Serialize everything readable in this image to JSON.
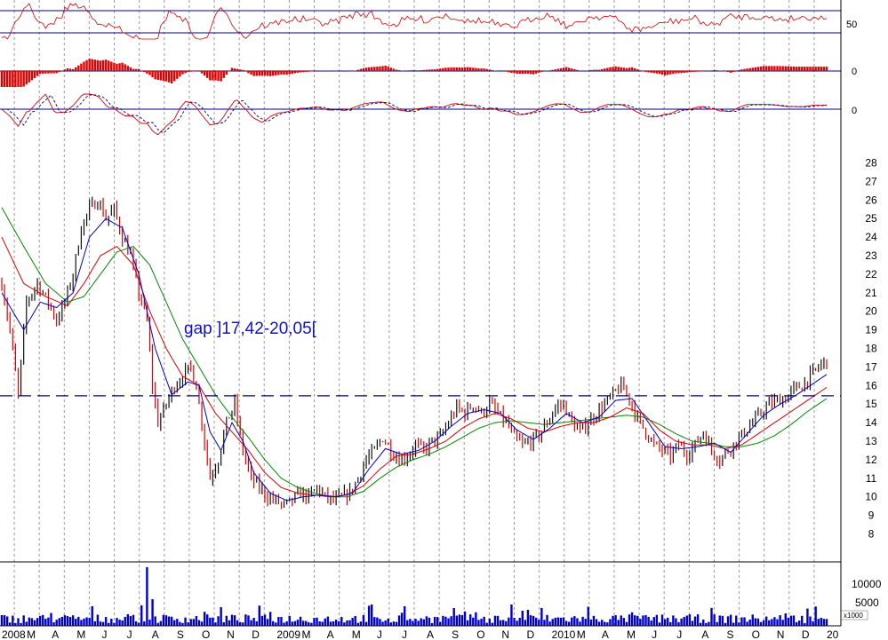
{
  "colors": {
    "price_up": "#101010",
    "price_down": "#e00000",
    "ma_short": "#0000cc",
    "ma_mid": "#dd0000",
    "ma_long": "#008800",
    "volume": "#0000cc",
    "grid": "#9a9a9a",
    "reference_line": "#000080",
    "indicator": "#dd0000",
    "histogram": "#e00000",
    "signal": "#000080"
  },
  "chart_data": [
    {
      "type": "line",
      "panel": "oscillator",
      "yticks": [
        "50"
      ],
      "reference_levels": [
        70,
        30
      ],
      "note": "oscillator band with horizontal reference lines"
    },
    {
      "type": "bar",
      "panel": "histogram",
      "yticks": [
        "0"
      ],
      "note": "red histogram around zero"
    },
    {
      "type": "line",
      "panel": "momentum",
      "yticks": [
        "0"
      ],
      "note": "red and dashed blue lines around zero"
    },
    {
      "type": "line",
      "panel": "price",
      "ylim": [
        7.5,
        28.6
      ],
      "yticks": [
        "8",
        "9",
        "10",
        "11",
        "12",
        "13",
        "14",
        "15",
        "16",
        "17",
        "18",
        "19",
        "20",
        "21",
        "22",
        "23",
        "24",
        "25",
        "26",
        "27",
        "28"
      ],
      "xticks": [
        "2008",
        "M",
        "A",
        "M",
        "J",
        "J",
        "A",
        "S",
        "O",
        "N",
        "D",
        "2009",
        "M",
        "A",
        "M",
        "J",
        "J",
        "A",
        "S",
        "O",
        "N",
        "D",
        "2010",
        "M",
        "A",
        "M",
        "J",
        "J",
        "A",
        "S",
        "O",
        "N",
        "D",
        "20"
      ],
      "support_level": 15.45,
      "annotation": "gap ]17,42-20,05[",
      "series": [
        {
          "kind": "close",
          "points": [
            [
              0,
              21.5
            ],
            [
              3,
              19.0
            ],
            [
              6,
              15.5
            ],
            [
              9,
              20.5
            ],
            [
              13,
              21.5
            ],
            [
              17,
              20.5
            ],
            [
              20,
              19.5
            ],
            [
              23,
              20.5
            ],
            [
              26,
              22.0
            ],
            [
              29,
              24.5
            ],
            [
              32,
              25.5
            ],
            [
              35,
              26.0
            ],
            [
              38,
              25.0
            ],
            [
              41,
              25.5
            ],
            [
              44,
              24.0
            ],
            [
              47,
              23.0
            ],
            [
              50,
              21.0
            ],
            [
              53,
              19.5
            ],
            [
              55,
              16.0
            ],
            [
              57,
              14.0
            ],
            [
              60,
              15.0
            ],
            [
              63,
              16.0
            ],
            [
              66,
              16.5
            ],
            [
              69,
              17.0
            ],
            [
              71,
              16.0
            ],
            [
              73,
              14.0
            ],
            [
              76,
              11.0
            ],
            [
              79,
              12.0
            ],
            [
              82,
              14.0
            ],
            [
              85,
              15.0
            ],
            [
              88,
              12.5
            ],
            [
              91,
              11.0
            ],
            [
              94,
              10.5
            ],
            [
              97,
              10.0
            ],
            [
              100,
              9.8
            ],
            [
              103,
              9.5
            ],
            [
              106,
              9.8
            ],
            [
              109,
              10.2
            ],
            [
              112,
              10.0
            ],
            [
              115,
              10.5
            ],
            [
              118,
              10.0
            ],
            [
              121,
              9.8
            ],
            [
              124,
              10.0
            ],
            [
              127,
              10.2
            ],
            [
              130,
              11.0
            ],
            [
              133,
              12.0
            ],
            [
              136,
              12.5
            ],
            [
              139,
              13.2
            ],
            [
              142,
              12.5
            ],
            [
              145,
              12.0
            ],
            [
              148,
              12.2
            ],
            [
              151,
              12.8
            ],
            [
              154,
              12.5
            ],
            [
              157,
              13.0
            ],
            [
              160,
              13.2
            ],
            [
              163,
              14.0
            ],
            [
              166,
              14.8
            ],
            [
              169,
              14.5
            ],
            [
              172,
              15.0
            ],
            [
              175,
              14.5
            ],
            [
              178,
              15.0
            ],
            [
              181,
              14.5
            ],
            [
              184,
              14.0
            ],
            [
              187,
              13.2
            ],
            [
              190,
              12.8
            ],
            [
              193,
              13.0
            ],
            [
              196,
              13.3
            ],
            [
              199,
              14.0
            ],
            [
              202,
              14.8
            ],
            [
              205,
              15.0
            ],
            [
              208,
              14.0
            ],
            [
              211,
              13.5
            ],
            [
              214,
              14.0
            ],
            [
              217,
              14.5
            ],
            [
              220,
              15.0
            ],
            [
              223,
              15.5
            ],
            [
              226,
              16.0
            ],
            [
              229,
              15.3
            ],
            [
              232,
              14.2
            ],
            [
              235,
              13.5
            ],
            [
              238,
              12.8
            ],
            [
              241,
              12.5
            ],
            [
              244,
              12.2
            ],
            [
              247,
              12.8
            ],
            [
              250,
              12.3
            ],
            [
              253,
              12.8
            ],
            [
              256,
              13.5
            ],
            [
              259,
              12.5
            ],
            [
              262,
              12.0
            ],
            [
              265,
              12.5
            ],
            [
              268,
              13.0
            ],
            [
              271,
              13.5
            ],
            [
              274,
              14.0
            ],
            [
              277,
              14.5
            ],
            [
              280,
              15.0
            ],
            [
              283,
              15.2
            ],
            [
              286,
              15.3
            ],
            [
              289,
              15.8
            ],
            [
              292,
              16.0
            ],
            [
              295,
              16.5
            ],
            [
              298,
              17.0
            ],
            [
              301,
              17.4
            ]
          ]
        },
        {
          "kind": "ma_short",
          "points": [
            [
              0,
              21.0
            ],
            [
              8,
              19.0
            ],
            [
              14,
              20.5
            ],
            [
              20,
              20.2
            ],
            [
              26,
              21.0
            ],
            [
              32,
              24.0
            ],
            [
              38,
              25.0
            ],
            [
              44,
              24.5
            ],
            [
              50,
              22.0
            ],
            [
              56,
              18.0
            ],
            [
              62,
              15.5
            ],
            [
              68,
              16.2
            ],
            [
              72,
              16.0
            ],
            [
              76,
              13.5
            ],
            [
              80,
              12.5
            ],
            [
              84,
              14.0
            ],
            [
              88,
              13.0
            ],
            [
              92,
              11.3
            ],
            [
              98,
              10.2
            ],
            [
              104,
              9.8
            ],
            [
              110,
              10.0
            ],
            [
              116,
              10.1
            ],
            [
              122,
              10.0
            ],
            [
              128,
              10.2
            ],
            [
              134,
              11.5
            ],
            [
              140,
              12.6
            ],
            [
              146,
              12.3
            ],
            [
              152,
              12.5
            ],
            [
              158,
              13.0
            ],
            [
              164,
              13.8
            ],
            [
              170,
              14.5
            ],
            [
              176,
              14.7
            ],
            [
              182,
              14.5
            ],
            [
              188,
              13.6
            ],
            [
              194,
              13.1
            ],
            [
              200,
              13.7
            ],
            [
              206,
              14.5
            ],
            [
              212,
              14.0
            ],
            [
              218,
              14.3
            ],
            [
              224,
              15.2
            ],
            [
              230,
              15.3
            ],
            [
              236,
              14.0
            ],
            [
              242,
              12.7
            ],
            [
              248,
              12.6
            ],
            [
              254,
              12.7
            ],
            [
              260,
              12.9
            ],
            [
              266,
              12.4
            ],
            [
              272,
              13.4
            ],
            [
              278,
              14.4
            ],
            [
              284,
              15.0
            ],
            [
              290,
              15.5
            ],
            [
              296,
              16.1
            ],
            [
              301,
              16.6
            ]
          ]
        },
        {
          "kind": "ma_mid",
          "points": [
            [
              0,
              24.0
            ],
            [
              8,
              21.5
            ],
            [
              16,
              20.8
            ],
            [
              24,
              20.3
            ],
            [
              30,
              21.5
            ],
            [
              36,
              23.0
            ],
            [
              42,
              23.5
            ],
            [
              48,
              22.5
            ],
            [
              54,
              20.0
            ],
            [
              60,
              18.0
            ],
            [
              66,
              16.5
            ],
            [
              72,
              16.0
            ],
            [
              78,
              14.5
            ],
            [
              84,
              13.5
            ],
            [
              90,
              12.5
            ],
            [
              96,
              11.3
            ],
            [
              102,
              10.5
            ],
            [
              108,
              10.2
            ],
            [
              114,
              10.1
            ],
            [
              120,
              10.0
            ],
            [
              126,
              10.1
            ],
            [
              132,
              10.6
            ],
            [
              138,
              11.5
            ],
            [
              144,
              12.2
            ],
            [
              150,
              12.3
            ],
            [
              156,
              12.6
            ],
            [
              162,
              13.0
            ],
            [
              168,
              13.7
            ],
            [
              174,
              14.2
            ],
            [
              180,
              14.5
            ],
            [
              186,
              14.2
            ],
            [
              192,
              13.7
            ],
            [
              198,
              13.5
            ],
            [
              204,
              13.8
            ],
            [
              210,
              14.0
            ],
            [
              216,
              14.0
            ],
            [
              222,
              14.3
            ],
            [
              228,
              14.8
            ],
            [
              234,
              14.5
            ],
            [
              240,
              13.6
            ],
            [
              246,
              13.0
            ],
            [
              252,
              12.8
            ],
            [
              258,
              12.8
            ],
            [
              264,
              12.6
            ],
            [
              270,
              12.8
            ],
            [
              276,
              13.4
            ],
            [
              282,
              14.0
            ],
            [
              288,
              14.6
            ],
            [
              294,
              15.2
            ],
            [
              301,
              15.9
            ]
          ]
        },
        {
          "kind": "ma_long",
          "points": [
            [
              0,
              25.6
            ],
            [
              8,
              23.5
            ],
            [
              16,
              21.5
            ],
            [
              24,
              20.5
            ],
            [
              30,
              20.8
            ],
            [
              36,
              22.0
            ],
            [
              42,
              23.2
            ],
            [
              48,
              23.5
            ],
            [
              54,
              22.5
            ],
            [
              60,
              20.5
            ],
            [
              66,
              18.5
            ],
            [
              72,
              17.0
            ],
            [
              78,
              15.5
            ],
            [
              84,
              14.3
            ],
            [
              90,
              13.2
            ],
            [
              96,
              12.0
            ],
            [
              102,
              11.0
            ],
            [
              108,
              10.5
            ],
            [
              114,
              10.2
            ],
            [
              120,
              10.0
            ],
            [
              126,
              10.0
            ],
            [
              132,
              10.3
            ],
            [
              138,
              11.0
            ],
            [
              144,
              11.6
            ],
            [
              150,
              12.0
            ],
            [
              156,
              12.3
            ],
            [
              162,
              12.7
            ],
            [
              168,
              13.2
            ],
            [
              174,
              13.7
            ],
            [
              180,
              14.0
            ],
            [
              186,
              14.1
            ],
            [
              192,
              14.0
            ],
            [
              198,
              13.9
            ],
            [
              204,
              14.0
            ],
            [
              210,
              14.1
            ],
            [
              216,
              14.2
            ],
            [
              222,
              14.3
            ],
            [
              228,
              14.4
            ],
            [
              234,
              14.3
            ],
            [
              240,
              13.9
            ],
            [
              246,
              13.4
            ],
            [
              252,
              13.0
            ],
            [
              258,
              12.9
            ],
            [
              264,
              12.7
            ],
            [
              270,
              12.7
            ],
            [
              276,
              12.9
            ],
            [
              282,
              13.3
            ],
            [
              288,
              13.9
            ],
            [
              294,
              14.6
            ],
            [
              301,
              15.3
            ]
          ]
        }
      ]
    },
    {
      "type": "bar",
      "panel": "volume",
      "yticks": [
        "10000",
        "5000"
      ],
      "unit": "x1000",
      "note": "daily volume bars, spike around July 2008"
    }
  ]
}
